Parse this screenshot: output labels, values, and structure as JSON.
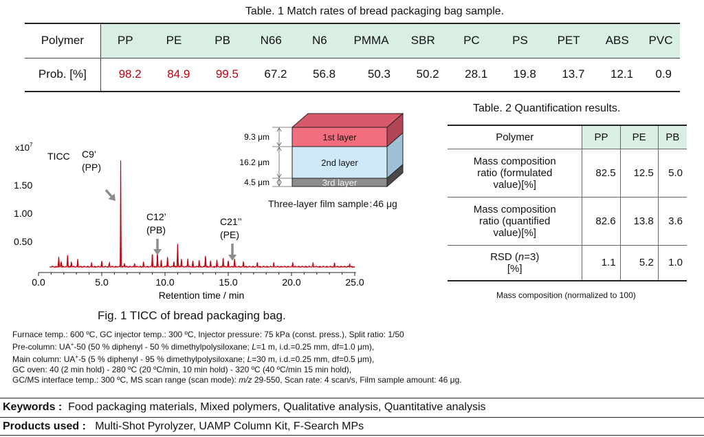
{
  "table1": {
    "caption": "Table. 1 Match rates of bread packaging bag sample.",
    "row_header": "Polymer",
    "row_label": "Prob. [%]",
    "polymers": [
      "PP",
      "PE",
      "PB",
      "N66",
      "N6",
      "PMMA",
      "SBR",
      "PC",
      "PS",
      "PET",
      "ABS",
      "PVC"
    ],
    "probs": [
      "98.2",
      "84.9",
      "99.5",
      "67.2",
      "56.8",
      "50.3",
      "50.2",
      "28.1",
      "19.8",
      "13.7",
      "12.1",
      "0.9"
    ],
    "highlight_color": "#c0000d",
    "header_color": "#d9efe4"
  },
  "table2": {
    "caption": "Table. 2 Quantification results.",
    "header": [
      "Polymer",
      "PP",
      "PE",
      "PB"
    ],
    "rows": [
      {
        "label_lines": [
          "Mass composition",
          "ratio (formulated",
          "value)[%]"
        ],
        "values": [
          "82.5",
          "12.5",
          "5.0"
        ]
      },
      {
        "label_lines": [
          "Mass composition",
          "ratio (quantified",
          "value)[%]"
        ],
        "values": [
          "82.6",
          "13.8",
          "3.6"
        ]
      },
      {
        "label_pre": "RSD (",
        "label_italic": "n",
        "label_post": "=3)",
        "label_line2": "[%]",
        "values": [
          "1.1",
          "5.2",
          "1.0"
        ]
      }
    ],
    "note": "Mass composition (normalized to 100)"
  },
  "film": {
    "caption": "Three-layer film sample : 46 μg",
    "layers": [
      {
        "name": "1st layer",
        "thickness": "9.3 μm",
        "color": "#f26d7d"
      },
      {
        "name": "2nd layer",
        "thickness": "16.2 μm",
        "color": "#cfe9fa"
      },
      {
        "name": "3rd layer",
        "thickness": "4.5 μm",
        "color": "#8c8c8c"
      }
    ]
  },
  "figure1": {
    "caption": "Fig. 1 TICC of bread packaging bag."
  },
  "chart_data": {
    "type": "line",
    "trace_label": "TICC",
    "y_multiplier": "x10",
    "y_multiplier_exp": "7",
    "xlabel": "Retention time / min",
    "xlim": [
      0,
      25
    ],
    "ylim": [
      0,
      2.0
    ],
    "x_ticks": [
      "0.0",
      "5.0",
      "10.0",
      "15.0",
      "20.0",
      "25.0"
    ],
    "y_ticks": [
      "0.50",
      "1.00",
      "1.50"
    ],
    "line_color": "#c0000d",
    "series": [
      {
        "peaks": [
          {
            "x": 1.6,
            "y": 0.18
          },
          {
            "x": 1.8,
            "y": 0.1
          },
          {
            "x": 2.3,
            "y": 0.22
          },
          {
            "x": 2.6,
            "y": 0.09
          },
          {
            "x": 3.1,
            "y": 0.13
          },
          {
            "x": 4.2,
            "y": 0.07
          },
          {
            "x": 5.0,
            "y": 0.11
          },
          {
            "x": 5.6,
            "y": 0.08
          },
          {
            "x": 6.5,
            "y": 1.92
          },
          {
            "x": 6.8,
            "y": 0.07
          },
          {
            "x": 7.6,
            "y": 0.06
          },
          {
            "x": 8.3,
            "y": 0.09
          },
          {
            "x": 9.0,
            "y": 0.25
          },
          {
            "x": 9.4,
            "y": 0.28
          },
          {
            "x": 9.7,
            "y": 0.12
          },
          {
            "x": 10.2,
            "y": 0.18
          },
          {
            "x": 10.7,
            "y": 0.1
          },
          {
            "x": 11.0,
            "y": 0.42
          },
          {
            "x": 11.3,
            "y": 0.14
          },
          {
            "x": 11.8,
            "y": 0.15
          },
          {
            "x": 12.2,
            "y": 0.11
          },
          {
            "x": 12.7,
            "y": 0.13
          },
          {
            "x": 13.2,
            "y": 0.21
          },
          {
            "x": 13.6,
            "y": 0.1
          },
          {
            "x": 14.1,
            "y": 0.12
          },
          {
            "x": 14.6,
            "y": 0.17
          },
          {
            "x": 15.0,
            "y": 0.11
          },
          {
            "x": 15.5,
            "y": 0.15
          },
          {
            "x": 16.2,
            "y": 0.09
          },
          {
            "x": 17.3,
            "y": 0.08
          },
          {
            "x": 18.6,
            "y": 0.07
          },
          {
            "x": 20.1,
            "y": 0.08
          },
          {
            "x": 21.7,
            "y": 0.07
          },
          {
            "x": 23.4,
            "y": 0.07
          },
          {
            "x": 24.6,
            "y": 0.06
          }
        ]
      }
    ],
    "annotations": [
      {
        "line1": "C9’",
        "line2": "(PP)",
        "x": 6.5
      },
      {
        "line1": "C12’",
        "line2": "(PB)",
        "x": 9.8
      },
      {
        "line1": "C21’’",
        "line2": "(PE)",
        "x": 15.5
      }
    ]
  },
  "conditions": {
    "line1": "Furnace temp.: 600 ºC, GC injector temp.: 300 ºC, Injector pressure: 75 kPa (const. press.), Split ratio: 1/50",
    "line2a": "Pre-column: UA",
    "line2b": "-50 (50 % diphenyl - 50 % dimethylpolysiloxane; ",
    "line2c": "=1 m, i.d.=0.25 mm, df=1.0 μm),",
    "line3a": "Main column: UA",
    "line3b": "-5 (5 % diphenyl - 95 % dimethylpolysiloxane; ",
    "line3c": "=30 m, i.d.=0.25 mm, df=0.5 μm),",
    "sup": "+",
    "italic_L": "L",
    "line4": "GC oven: 40 (2 min hold) - 280 ºC (20 ºC/min, 10 min hold) - 320 ºC (40 ºC/min 15 min hold),",
    "line5a": "GC/MS interface temp.: 300 ºC, MS scan range (scan mode): ",
    "line5b": "m/z",
    "line5c": " 29-550, Scan rate: 4 scan/s, Film sample amount: 46 μg."
  },
  "keywords": {
    "label": "Keywords :",
    "text": "Food packaging materials, Mixed polymers, Qualitative analysis, Quantitative analysis"
  },
  "products": {
    "label": "Products used :",
    "text": "Multi-Shot Pyrolyzer, UAMP Column Kit, F-Search MPs"
  }
}
